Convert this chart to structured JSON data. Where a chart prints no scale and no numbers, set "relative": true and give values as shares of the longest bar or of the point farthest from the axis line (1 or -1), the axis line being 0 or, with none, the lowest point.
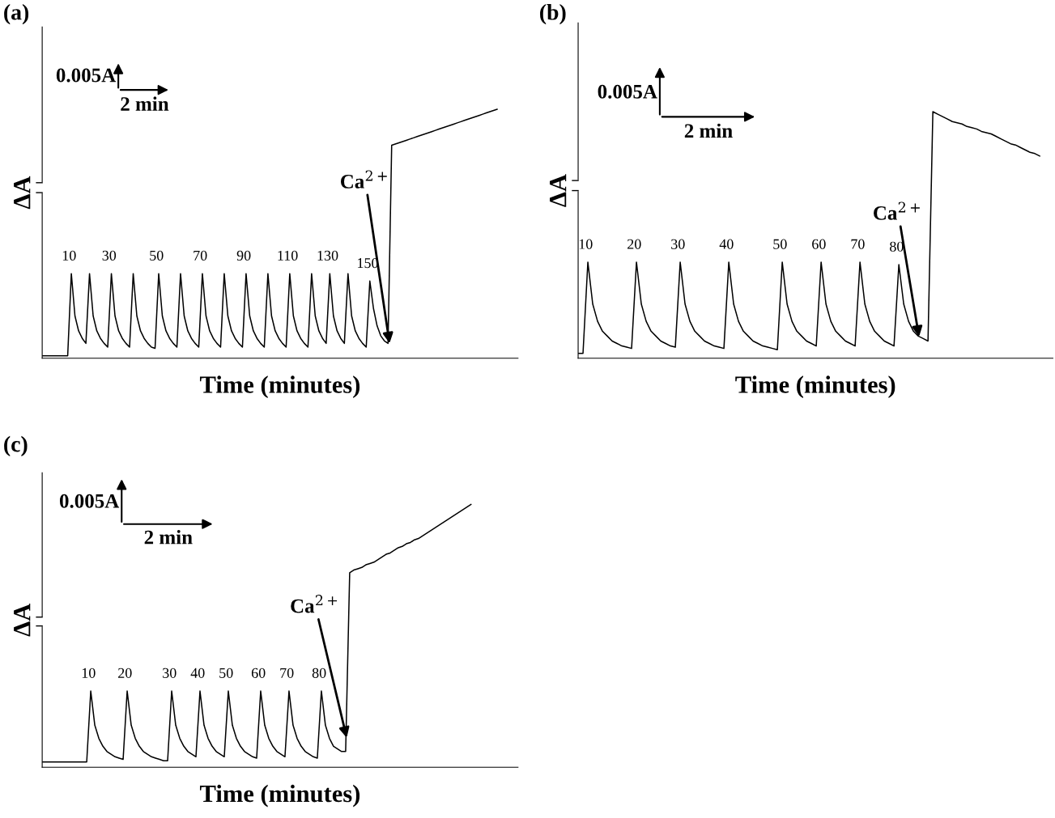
{
  "chart_data": [
    {
      "type": "line",
      "title": "(a)",
      "xlabel": "Time (minutes)",
      "ylabel": "ΔA",
      "relative": true,
      "categories": [
        null,
        null,
        null,
        null,
        null,
        null,
        null,
        null,
        null,
        null,
        null,
        null,
        null,
        null,
        null,
        null,
        null,
        null,
        null,
        null,
        null,
        null,
        null,
        null,
        null,
        null,
        null,
        null,
        null,
        null,
        null,
        null,
        null,
        null,
        null,
        null,
        null,
        null,
        null,
        null,
        null,
        null,
        null,
        null,
        null,
        null,
        null,
        null,
        null,
        null,
        null,
        null,
        null,
        null,
        null,
        null,
        null,
        null,
        null,
        null,
        null,
        null,
        null,
        null,
        null,
        null,
        null,
        null,
        null,
        null,
        null,
        null,
        null,
        null,
        null,
        null,
        null,
        null,
        null,
        null,
        null,
        null,
        null,
        null,
        null,
        null,
        null,
        null,
        null,
        null,
        null,
        null,
        null,
        null,
        null,
        null,
        null,
        null,
        null,
        null,
        null,
        null,
        null,
        null,
        null,
        null,
        null,
        null,
        null,
        null,
        null,
        null,
        null,
        null,
        null,
        null,
        null,
        null,
        null,
        null,
        null,
        null,
        null,
        null,
        null,
        null
      ],
      "series": [
        {
          "color": "#000000",
          "values": [
            0.01,
            0.01,
            0.01,
            0.01,
            0.01,
            0.01,
            0.01,
            0.01,
            0.34,
            0.17,
            0.11,
            0.08,
            0.06,
            0.34,
            0.17,
            0.11,
            0.08,
            0.06,
            0.045,
            0.34,
            0.17,
            0.11,
            0.08,
            0.06,
            0.045,
            0.34,
            0.17,
            0.11,
            0.08,
            0.06,
            0.045,
            0.04,
            0.34,
            0.17,
            0.11,
            0.08,
            0.06,
            0.045,
            0.34,
            0.17,
            0.11,
            0.08,
            0.06,
            0.045,
            0.34,
            0.17,
            0.11,
            0.08,
            0.06,
            0.045,
            0.34,
            0.17,
            0.11,
            0.08,
            0.06,
            0.045,
            0.34,
            0.17,
            0.11,
            0.08,
            0.06,
            0.045,
            0.34,
            0.17,
            0.11,
            0.08,
            0.06,
            0.045,
            0.34,
            0.17,
            0.11,
            0.08,
            0.06,
            0.045,
            0.34,
            0.17,
            0.11,
            0.08,
            0.06,
            0.34,
            0.17,
            0.11,
            0.08,
            0.06,
            0.34,
            0.17,
            0.11,
            0.08,
            0.06,
            0.045,
            0.31,
            0.2,
            0.13,
            0.09,
            0.07,
            0.06,
            0.855,
            0.86,
            0.865,
            0.87,
            0.875,
            0.88,
            0.885,
            0.89,
            0.895,
            0.9,
            0.905,
            0.91,
            0.915,
            0.92,
            0.925,
            0.93,
            0.935,
            0.94,
            0.945,
            0.95,
            0.955,
            0.96,
            0.965,
            0.97,
            0.975,
            0.98,
            0.985,
            0.99,
            0.995,
            1.0
          ]
        }
      ],
      "annotations": [
        "0.005A",
        "2 min",
        "Ca$^{2+}$",
        "10",
        "30",
        "50",
        "70",
        "90",
        "110",
        "130",
        "150"
      ]
    },
    {
      "type": "line",
      "title": "(b)",
      "xlabel": "Time (minutes)",
      "ylabel": "ΔA",
      "relative": true,
      "categories": [
        null,
        null,
        null,
        null,
        null,
        null,
        null,
        null,
        null,
        null,
        null,
        null,
        null,
        null,
        null,
        null,
        null,
        null,
        null,
        null,
        null,
        null,
        null,
        null,
        null,
        null,
        null,
        null,
        null,
        null,
        null,
        null,
        null,
        null,
        null,
        null,
        null,
        null,
        null,
        null,
        null,
        null,
        null,
        null,
        null,
        null,
        null,
        null,
        null,
        null,
        null,
        null,
        null,
        null,
        null,
        null,
        null,
        null,
        null,
        null,
        null,
        null,
        null,
        null,
        null,
        null,
        null,
        null,
        null,
        null,
        null,
        null,
        null,
        null,
        null,
        null,
        null,
        null,
        null,
        null,
        null,
        null,
        null,
        null,
        null,
        null,
        null,
        null,
        null,
        null,
        null,
        null,
        null,
        null,
        null,
        null
      ],
      "series": [
        {
          "color": "#000000",
          "values": [
            0.02,
            0.02,
            0.39,
            0.22,
            0.15,
            0.11,
            0.09,
            0.07,
            0.06,
            0.05,
            0.045,
            0.04,
            0.39,
            0.22,
            0.15,
            0.11,
            0.09,
            0.07,
            0.06,
            0.05,
            0.045,
            0.39,
            0.22,
            0.15,
            0.11,
            0.09,
            0.07,
            0.06,
            0.05,
            0.045,
            0.04,
            0.39,
            0.22,
            0.15,
            0.11,
            0.09,
            0.07,
            0.06,
            0.05,
            0.045,
            0.04,
            0.035,
            0.39,
            0.22,
            0.15,
            0.11,
            0.09,
            0.07,
            0.06,
            0.05,
            0.39,
            0.22,
            0.15,
            0.11,
            0.09,
            0.07,
            0.06,
            0.05,
            0.39,
            0.22,
            0.15,
            0.11,
            0.09,
            0.07,
            0.06,
            0.05,
            0.38,
            0.22,
            0.15,
            0.11,
            0.09,
            0.08,
            0.07,
            1.0,
            0.99,
            0.98,
            0.97,
            0.96,
            0.955,
            0.95,
            0.94,
            0.935,
            0.93,
            0.92,
            0.915,
            0.91,
            0.9,
            0.89,
            0.88,
            0.87,
            0.865,
            0.855,
            0.845,
            0.835,
            0.83,
            0.82
          ]
        }
      ],
      "annotations": [
        "0.005A",
        "2 min",
        "Ca$^{2+}$",
        "10",
        "20",
        "30",
        "40",
        "50",
        "60",
        "70",
        "80"
      ]
    },
    {
      "type": "line",
      "title": "(c)",
      "xlabel": "Time (minutes)",
      "ylabel": "ΔA",
      "relative": true,
      "categories": [
        null,
        null,
        null,
        null,
        null,
        null,
        null,
        null,
        null,
        null,
        null,
        null,
        null,
        null,
        null,
        null,
        null,
        null,
        null,
        null,
        null,
        null,
        null,
        null,
        null,
        null,
        null,
        null,
        null,
        null,
        null,
        null,
        null,
        null,
        null,
        null,
        null,
        null,
        null,
        null,
        null,
        null,
        null,
        null,
        null,
        null,
        null,
        null,
        null,
        null,
        null,
        null,
        null,
        null,
        null,
        null,
        null,
        null,
        null,
        null,
        null,
        null,
        null,
        null,
        null,
        null,
        null,
        null,
        null,
        null,
        null,
        null,
        null,
        null,
        null,
        null,
        null,
        null,
        null,
        null,
        null,
        null,
        null,
        null,
        null,
        null,
        null,
        null,
        null,
        null,
        null,
        null,
        null,
        null,
        null,
        null,
        null,
        null,
        null,
        null,
        null,
        null,
        null,
        null,
        null,
        null,
        null
      ],
      "series": [
        {
          "color": "#000000",
          "values": [
            0.02,
            0.02,
            0.02,
            0.02,
            0.02,
            0.02,
            0.02,
            0.02,
            0.02,
            0.02,
            0.02,
            0.02,
            0.29,
            0.16,
            0.11,
            0.08,
            0.06,
            0.05,
            0.04,
            0.035,
            0.03,
            0.29,
            0.16,
            0.11,
            0.08,
            0.06,
            0.05,
            0.04,
            0.035,
            0.03,
            0.025,
            0.025,
            0.29,
            0.16,
            0.11,
            0.08,
            0.06,
            0.05,
            0.04,
            0.29,
            0.16,
            0.11,
            0.08,
            0.06,
            0.05,
            0.04,
            0.29,
            0.16,
            0.11,
            0.08,
            0.06,
            0.05,
            0.04,
            0.035,
            0.29,
            0.16,
            0.11,
            0.08,
            0.06,
            0.05,
            0.04,
            0.29,
            0.16,
            0.11,
            0.08,
            0.06,
            0.05,
            0.04,
            0.035,
            0.29,
            0.16,
            0.11,
            0.08,
            0.07,
            0.06,
            0.06,
            0.74,
            0.75,
            0.755,
            0.76,
            0.77,
            0.775,
            0.78,
            0.79,
            0.8,
            0.81,
            0.815,
            0.825,
            0.835,
            0.84,
            0.85,
            0.855,
            0.865,
            0.87,
            0.88,
            0.89,
            0.9,
            0.91,
            0.92,
            0.93,
            0.94,
            0.95,
            0.96,
            0.97,
            0.98,
            0.99,
            1.0
          ]
        }
      ],
      "annotations": [
        "0.005A",
        "2 min",
        "Ca$^{2+}$",
        "10",
        "20",
        "30",
        "40",
        "50",
        "60",
        "70",
        "80"
      ]
    }
  ]
}
